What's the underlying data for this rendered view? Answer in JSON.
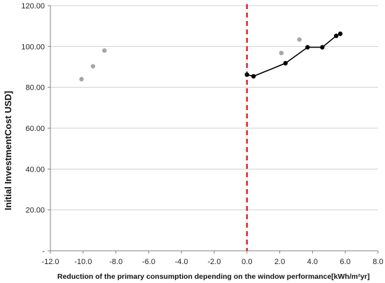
{
  "chart_data": {
    "type": "scatter",
    "title": "",
    "xlabel": "Reduction of the primary consumption depending on the window performance[kWh/m²yr]",
    "ylabel": "Initial InvestmentCost  USD]",
    "xlim": [
      -12.0,
      8.0
    ],
    "ylim": [
      0,
      120
    ],
    "grid": "horizontal",
    "x_ticks": [
      "-12.0",
      "-10.0",
      "-8.0",
      "-6.0",
      "-4.0",
      "-2.0",
      "0.0",
      "2.0",
      "4.0",
      "6.0",
      "8.0"
    ],
    "y_ticks": [
      "-",
      "20.00",
      "40.00",
      "60.00",
      "80.00",
      "100.00",
      "120.00"
    ],
    "reference_line": {
      "x": 0.0,
      "color": "#e02020",
      "style": "dashed"
    },
    "series": [
      {
        "color": "#a6a6a6",
        "points": [
          {
            "x": -10.1,
            "y": 84.0
          },
          {
            "x": -9.4,
            "y": 90.3
          },
          {
            "x": -8.7,
            "y": 98.0
          },
          {
            "x": 2.1,
            "y": 96.8
          },
          {
            "x": 3.2,
            "y": 103.4
          }
        ]
      },
      {
        "color": "#000000",
        "line": true,
        "points": [
          {
            "x": 0.0,
            "y": 86.2
          },
          {
            "x": 0.4,
            "y": 85.4
          },
          {
            "x": 2.35,
            "y": 91.8
          },
          {
            "x": 3.7,
            "y": 99.6
          },
          {
            "x": 4.6,
            "y": 99.6
          },
          {
            "x": 5.45,
            "y": 105.2
          },
          {
            "x": 5.7,
            "y": 106.2
          }
        ]
      }
    ]
  }
}
